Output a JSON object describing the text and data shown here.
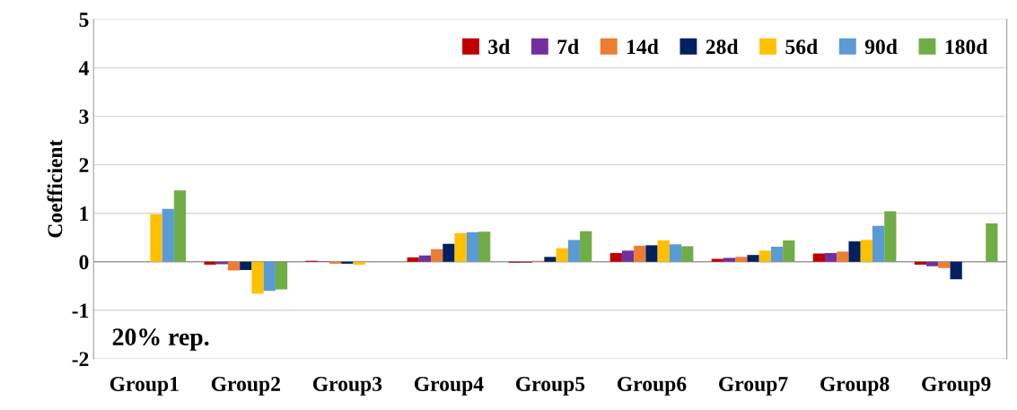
{
  "chart_data": {
    "type": "bar",
    "ylabel": "Coefficient",
    "categories": [
      "Group1",
      "Group2",
      "Group3",
      "Group4",
      "Group5",
      "Group6",
      "Group7",
      "Group8",
      "Group9"
    ],
    "series": [
      {
        "name": "3d",
        "color": "#c00000",
        "values": [
          null,
          -0.06,
          0.02,
          0.09,
          -0.02,
          0.18,
          0.06,
          0.17,
          -0.06
        ]
      },
      {
        "name": "7d",
        "color": "#7030a0",
        "values": [
          null,
          -0.05,
          0.01,
          0.13,
          -0.02,
          0.23,
          0.08,
          0.18,
          -0.09
        ]
      },
      {
        "name": "14d",
        "color": "#ed7d31",
        "values": [
          null,
          -0.18,
          -0.04,
          0.26,
          0.02,
          0.33,
          0.1,
          0.21,
          -0.13
        ]
      },
      {
        "name": "28d",
        "color": "#002060",
        "values": [
          null,
          -0.17,
          -0.04,
          0.37,
          0.1,
          0.34,
          0.14,
          0.42,
          -0.36
        ]
      },
      {
        "name": "56d",
        "color": "#ffc000",
        "values": [
          0.98,
          -0.66,
          -0.06,
          0.59,
          0.28,
          0.44,
          0.23,
          0.45,
          null
        ]
      },
      {
        "name": "90d",
        "color": "#5b9bd5",
        "values": [
          1.09,
          -0.6,
          null,
          0.61,
          0.45,
          0.36,
          0.31,
          0.74,
          null
        ]
      },
      {
        "name": "180d",
        "color": "#70ad47",
        "values": [
          1.47,
          -0.57,
          null,
          0.62,
          0.63,
          0.32,
          0.44,
          1.04,
          0.79
        ]
      }
    ],
    "ylim": [
      -2,
      5
    ],
    "yticks": [
      -2,
      -1,
      0,
      1,
      2,
      3,
      4,
      5
    ],
    "grid": "y",
    "legend": "top right",
    "annotations": [
      "20% rep."
    ]
  }
}
